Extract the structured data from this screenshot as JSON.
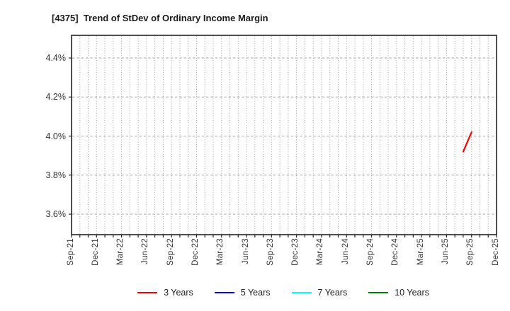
{
  "chart": {
    "title": "[4375]  Trend of StDev of Ordinary Income Margin"
  },
  "chart_data": {
    "type": "line",
    "title": "[4375]  Trend of StDev of Ordinary Income Margin",
    "xlabel": "",
    "ylabel": "",
    "y_ticks": [
      4.4,
      4.2,
      4.0,
      3.8,
      3.6
    ],
    "y_tick_labels": [
      "4.4%",
      "4.2%",
      "4.0%",
      "3.8%",
      "3.6%"
    ],
    "ylim": [
      3.495,
      4.516
    ],
    "x_tick_labels": [
      "Sep-21",
      "Dec-21",
      "Mar-22",
      "Jun-22",
      "Sep-22",
      "Dec-22",
      "Mar-23",
      "Jun-23",
      "Sep-23",
      "Dec-23",
      "Mar-24",
      "Jun-24",
      "Sep-24",
      "Dec-24",
      "Mar-25",
      "Jun-25",
      "Sep-25",
      "Dec-25"
    ],
    "x_months_per_label": 3,
    "x_months_total": 51,
    "grid": {
      "vertical": "dotted-monthly",
      "horizontal": "dashed-at-y-ticks"
    },
    "legend_position": "bottom",
    "series": [
      {
        "name": "3 Years",
        "color": "#ff0000",
        "points": [
          {
            "x_label": "Aug-25",
            "month_index": 47,
            "value": 3.92
          },
          {
            "x_label": "Sep-25",
            "month_index": 48,
            "value": 4.02
          }
        ]
      },
      {
        "name": "5 Years",
        "color": "#0000ee",
        "points": []
      },
      {
        "name": "7 Years",
        "color": "#00ffff",
        "points": []
      },
      {
        "name": "10 Years",
        "color": "#008000",
        "points": []
      }
    ],
    "colors": {
      "grid": "#a6a6a6",
      "axis": "#222222",
      "tick_label": "#333333",
      "title": "#1a1a1a",
      "background": "#ffffff"
    }
  }
}
